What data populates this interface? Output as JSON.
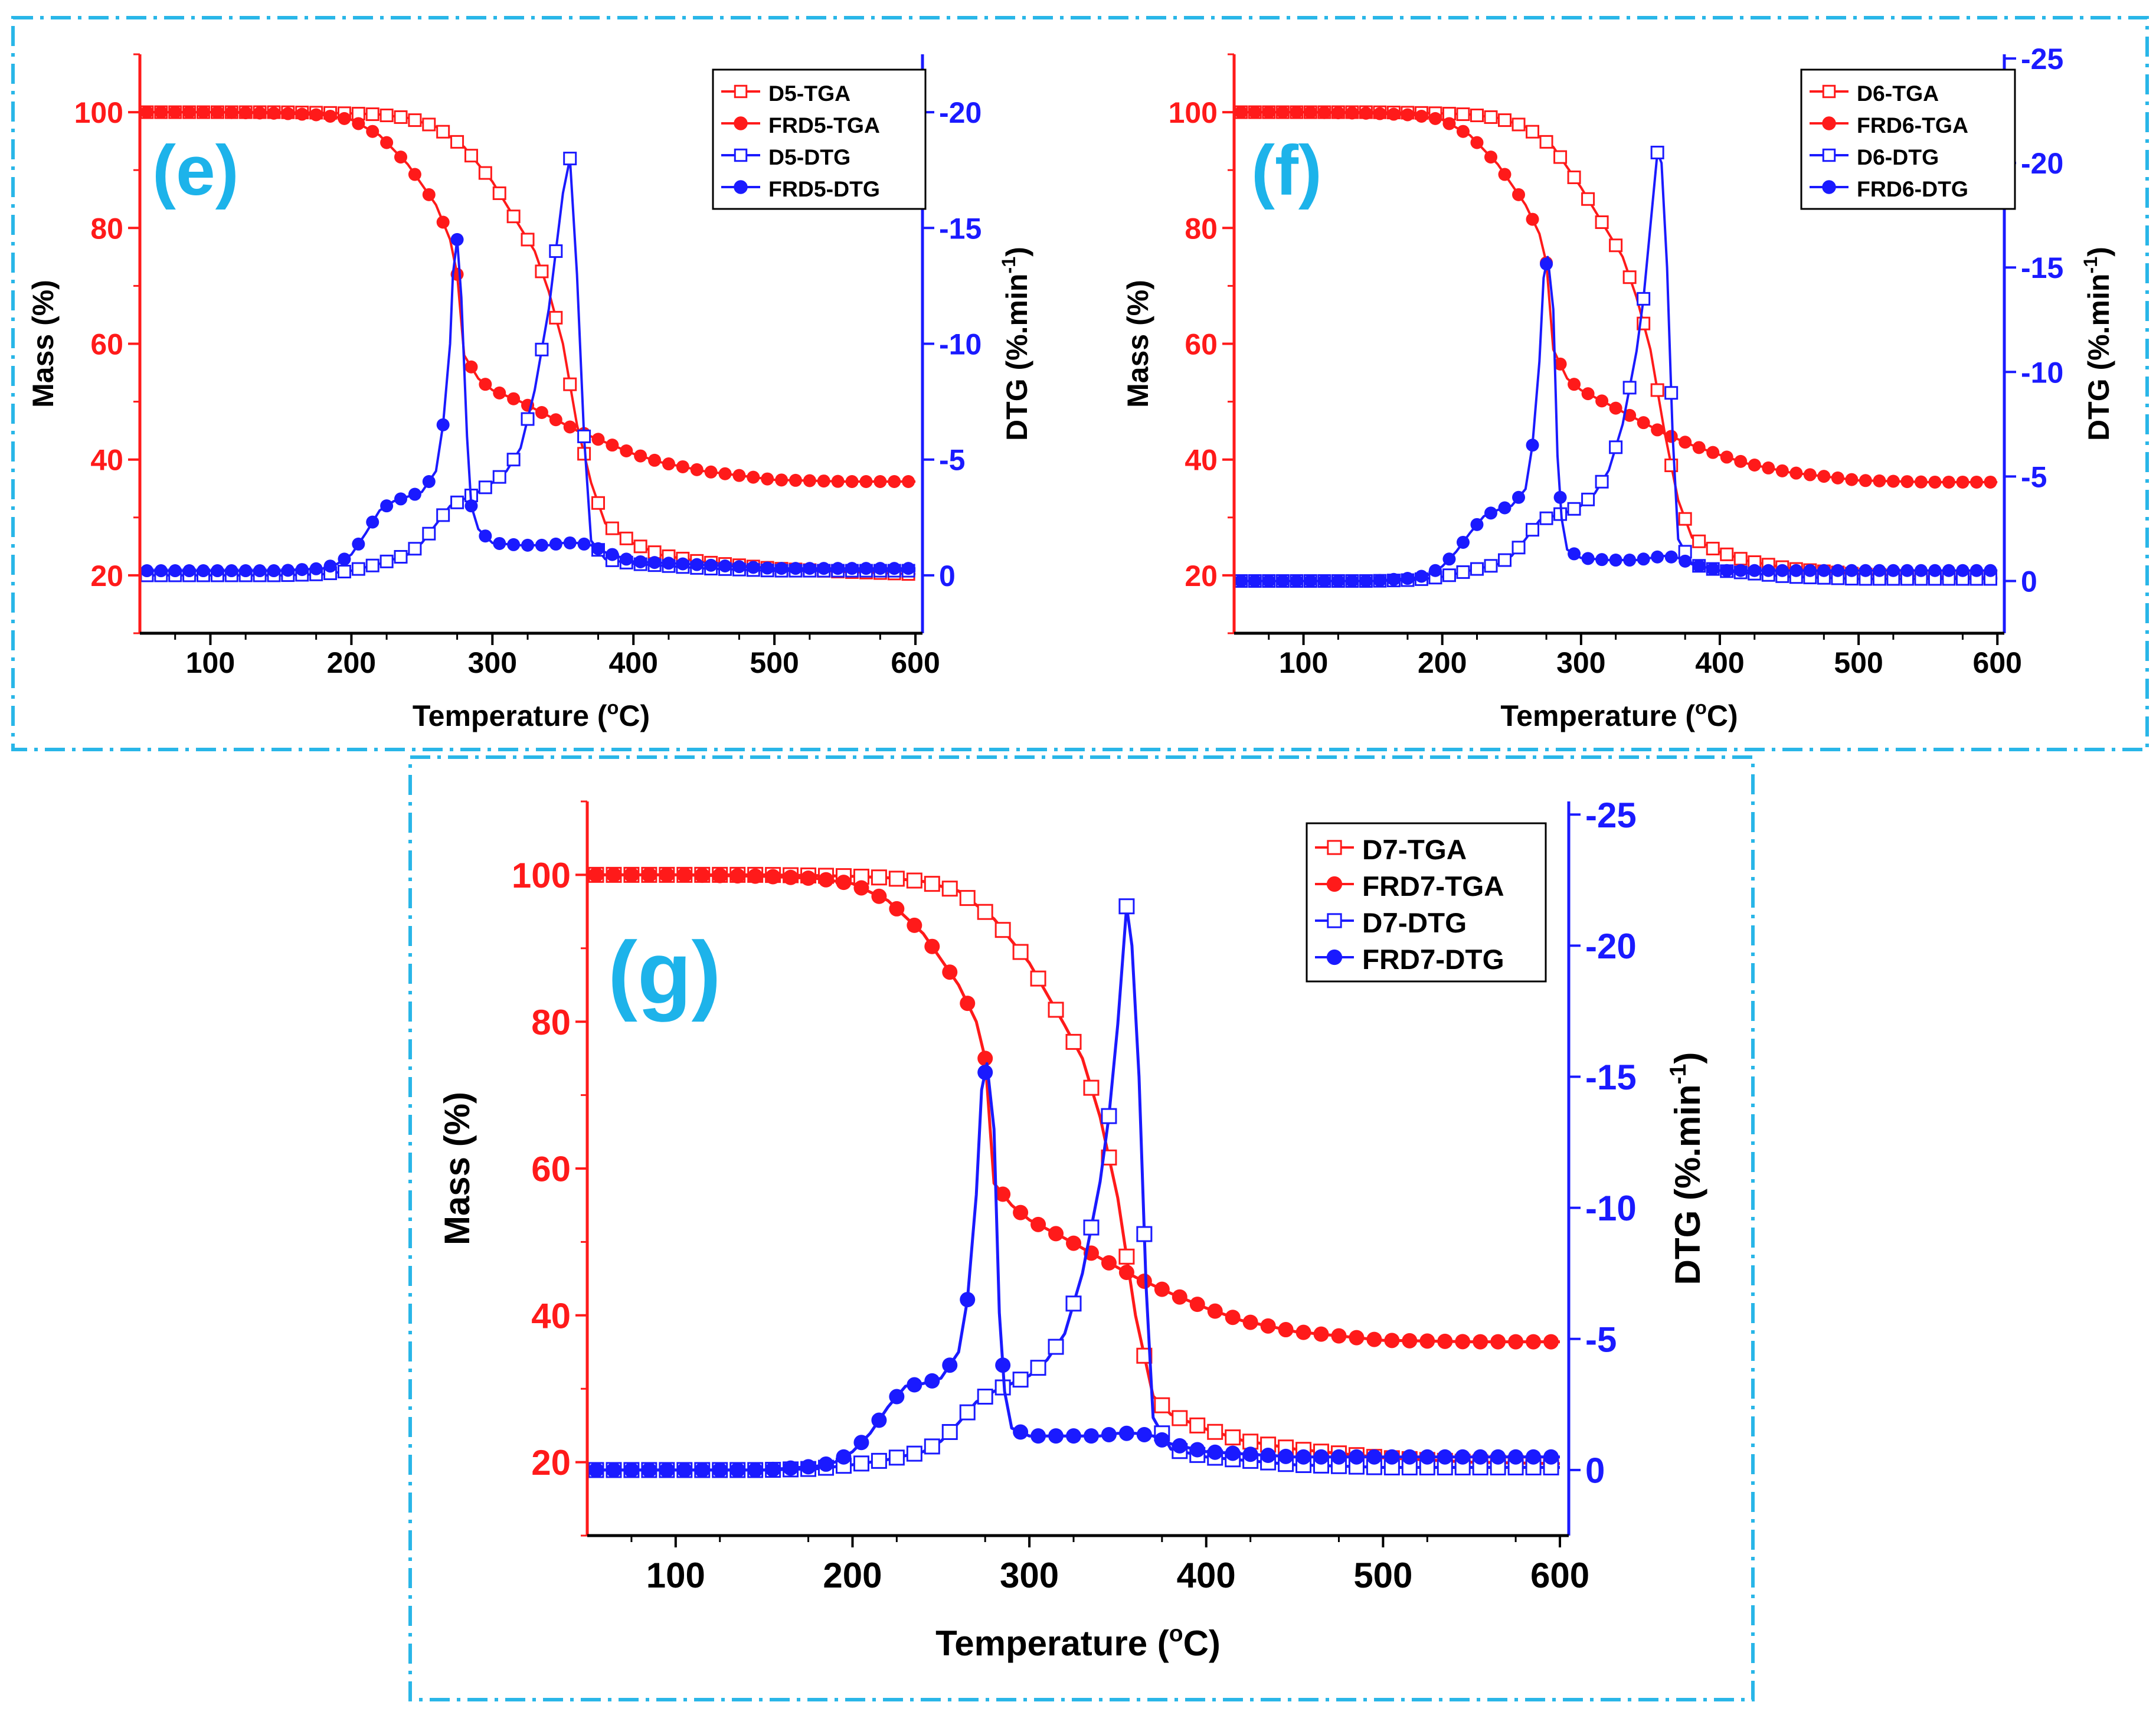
{
  "colors": {
    "frame": "#29b6e8",
    "tga": "#ff1a1a",
    "dtg": "#1a1aff",
    "panel_label": "#1db3ea",
    "axis": "#000000"
  },
  "chart_data": [
    {
      "type": "line",
      "panel_label": "(e)",
      "xlabel": "Temperature (°C)",
      "xlabel_main": "Temperature (",
      "xlabel_sup": "o",
      "xlabel_end": "C)",
      "ylabel": "Mass (%)",
      "y2label": "DTG (%.min-1)",
      "y2label_main": "DTG (%.min",
      "y2label_sup": "-1",
      "y2label_end": ")",
      "xlim": [
        50,
        605
      ],
      "ylim": [
        10,
        110
      ],
      "y2lim": [
        2.5,
        -22.5
      ],
      "xticks": [
        100,
        200,
        300,
        400,
        500,
        600
      ],
      "yticks": [
        20,
        40,
        60,
        80,
        100
      ],
      "y2ticks": [
        0,
        -5,
        -10,
        -15,
        -20
      ],
      "legend": [
        "D5-TGA",
        "FRD5-TGA",
        "D5-DTG",
        "FRD5-DTG"
      ],
      "series": [
        {
          "name": "D5-TGA",
          "axis": "left",
          "marker": "open-square",
          "color": "tga",
          "x": [
            50,
            100,
            150,
            180,
            200,
            220,
            240,
            260,
            280,
            300,
            320,
            330,
            340,
            350,
            360,
            370,
            380,
            400,
            420,
            450,
            500,
            550,
            600
          ],
          "y": [
            100,
            100,
            100,
            99.9,
            99.8,
            99.6,
            99,
            97.5,
            94,
            88,
            80,
            76,
            69,
            60,
            46,
            36,
            29,
            25.5,
            23.5,
            22.3,
            21.2,
            20.6,
            20.2
          ]
        },
        {
          "name": "FRD5-TGA",
          "axis": "left",
          "marker": "filled-circle",
          "color": "tga",
          "x": [
            50,
            100,
            150,
            180,
            200,
            220,
            240,
            260,
            270,
            275,
            280,
            290,
            300,
            320,
            340,
            360,
            380,
            400,
            420,
            450,
            500,
            550,
            600
          ],
          "y": [
            100,
            100,
            99.8,
            99.5,
            98.7,
            96,
            91,
            84,
            78,
            72,
            58,
            54,
            52,
            50,
            47.5,
            45,
            43,
            41,
            39.5,
            38,
            36.5,
            36.2,
            36.2
          ]
        },
        {
          "name": "D5-DTG",
          "axis": "right",
          "marker": "open-square",
          "color": "dtg",
          "x": [
            50,
            100,
            150,
            180,
            200,
            220,
            240,
            250,
            260,
            270,
            280,
            290,
            300,
            310,
            320,
            330,
            340,
            345,
            350,
            355,
            360,
            365,
            370,
            380,
            400,
            450,
            500,
            550,
            600
          ],
          "y": [
            0,
            0,
            0,
            -0.05,
            -0.2,
            -0.5,
            -0.9,
            -1.4,
            -2.2,
            -3,
            -3.3,
            -3.6,
            -4,
            -4.5,
            -5.5,
            -8,
            -11.5,
            -14,
            -16.5,
            -18,
            -13,
            -6,
            -1.5,
            -0.7,
            -0.5,
            -0.3,
            -0.2,
            -0.2,
            -0.2
          ]
        },
        {
          "name": "FRD5-DTG",
          "axis": "right",
          "marker": "filled-circle",
          "color": "dtg",
          "x": [
            50,
            100,
            150,
            180,
            190,
            200,
            210,
            220,
            230,
            240,
            250,
            260,
            265,
            270,
            272,
            275,
            278,
            282,
            285,
            290,
            300,
            320,
            340,
            350,
            360,
            370,
            380,
            400,
            450,
            500,
            550,
            600
          ],
          "y": [
            -0.2,
            -0.2,
            -0.2,
            -0.3,
            -0.5,
            -0.9,
            -1.8,
            -2.8,
            -3.2,
            -3.4,
            -3.6,
            -4.5,
            -6.5,
            -10,
            -13,
            -14.5,
            -12,
            -6,
            -3,
            -2,
            -1.4,
            -1.3,
            -1.3,
            -1.4,
            -1.4,
            -1.3,
            -1,
            -0.6,
            -0.45,
            -0.3,
            -0.3,
            -0.3
          ]
        }
      ]
    },
    {
      "type": "line",
      "panel_label": "(f)",
      "xlabel": "Temperature (°C)",
      "xlabel_main": "Temperature (",
      "xlabel_sup": "o",
      "xlabel_end": "C)",
      "ylabel": "Mass (%)",
      "y2label": "DTG (%.min-1)",
      "y2label_main": "DTG (%.min",
      "y2label_sup": "-1",
      "y2label_end": ")",
      "xlim": [
        50,
        605
      ],
      "ylim": [
        10,
        110
      ],
      "y2lim": [
        2.5,
        -25.2
      ],
      "xticks": [
        100,
        200,
        300,
        400,
        500,
        600
      ],
      "yticks": [
        20,
        40,
        60,
        80,
        100
      ],
      "y2ticks": [
        0,
        -5,
        -10,
        -15,
        -20,
        -25
      ],
      "legend": [
        "D6-TGA",
        "FRD6-TGA",
        "D6-DTG",
        "FRD6-DTG"
      ],
      "series": [
        {
          "name": "D6-TGA",
          "axis": "left",
          "marker": "open-square",
          "color": "tga",
          "x": [
            50,
            100,
            150,
            180,
            200,
            220,
            240,
            260,
            280,
            300,
            320,
            330,
            340,
            350,
            360,
            370,
            380,
            400,
            420,
            450,
            500,
            550,
            600
          ],
          "y": [
            100,
            100,
            100,
            99.9,
            99.8,
            99.6,
            99,
            97.5,
            94,
            87,
            79,
            75,
            68,
            59,
            45,
            33,
            26.5,
            24,
            22.5,
            21.2,
            20.2,
            19.8,
            19.6
          ]
        },
        {
          "name": "FRD6-TGA",
          "axis": "left",
          "marker": "filled-circle",
          "color": "tga",
          "x": [
            50,
            100,
            150,
            180,
            200,
            220,
            240,
            260,
            270,
            275,
            280,
            290,
            300,
            320,
            340,
            360,
            380,
            400,
            420,
            450,
            500,
            550,
            600
          ],
          "y": [
            100,
            100,
            99.8,
            99.5,
            98.7,
            96,
            91,
            84,
            79,
            74,
            59,
            54,
            52,
            49.5,
            47,
            44.5,
            42.5,
            40.8,
            39.3,
            37.8,
            36.4,
            36.1,
            36.1
          ]
        },
        {
          "name": "D6-DTG",
          "axis": "right",
          "marker": "open-square",
          "color": "dtg",
          "x": [
            50,
            100,
            150,
            180,
            200,
            220,
            240,
            250,
            260,
            270,
            280,
            290,
            300,
            310,
            320,
            330,
            340,
            345,
            350,
            355,
            358,
            362,
            366,
            370,
            380,
            400,
            450,
            500,
            550,
            600
          ],
          "y": [
            0,
            0,
            0,
            -0.05,
            -0.2,
            -0.5,
            -0.8,
            -1.2,
            -2,
            -2.9,
            -3.1,
            -3.3,
            -3.6,
            -4.2,
            -5.3,
            -7.5,
            -11,
            -13.5,
            -17,
            -20.5,
            -20,
            -15,
            -7,
            -2,
            -0.8,
            -0.5,
            -0.2,
            -0.1,
            -0.1,
            -0.1
          ]
        },
        {
          "name": "FRD6-DTG",
          "axis": "right",
          "marker": "filled-circle",
          "color": "dtg",
          "x": [
            50,
            100,
            150,
            180,
            190,
            200,
            210,
            220,
            230,
            240,
            250,
            260,
            265,
            270,
            273,
            276,
            280,
            283,
            286,
            290,
            300,
            320,
            340,
            350,
            360,
            370,
            380,
            400,
            450,
            500,
            550,
            600
          ],
          "y": [
            0,
            0,
            0,
            -0.15,
            -0.3,
            -0.7,
            -1.4,
            -2.3,
            -3.1,
            -3.4,
            -3.6,
            -4.4,
            -6.5,
            -10.5,
            -14.5,
            -15.5,
            -13,
            -6,
            -3,
            -1.5,
            -1.1,
            -1,
            -1,
            -1.1,
            -1.2,
            -1.1,
            -0.8,
            -0.5,
            -0.5,
            -0.5,
            -0.5,
            -0.5
          ]
        }
      ]
    },
    {
      "type": "line",
      "panel_label": "(g)",
      "xlabel": "Temperature (°C)",
      "xlabel_main": "Temperature (",
      "xlabel_sup": "o",
      "xlabel_end": "C)",
      "ylabel": "Mass (%)",
      "y2label": "DTG (%.min-1)",
      "y2label_main": "DTG (%.min",
      "y2label_sup": "-1",
      "y2label_end": ")",
      "xlim": [
        50,
        605
      ],
      "ylim": [
        10,
        110
      ],
      "y2lim": [
        2.5,
        -25.5
      ],
      "xticks": [
        100,
        200,
        300,
        400,
        500,
        600
      ],
      "yticks": [
        20,
        40,
        60,
        80,
        100
      ],
      "y2ticks": [
        0,
        -5,
        -10,
        -15,
        -20,
        -25
      ],
      "legend": [
        "D7-TGA",
        "FRD7-TGA",
        "D7-DTG",
        "FRD7-DTG"
      ],
      "series": [
        {
          "name": "D7-TGA",
          "axis": "left",
          "marker": "open-square",
          "color": "tga",
          "x": [
            50,
            100,
            150,
            180,
            200,
            220,
            240,
            260,
            280,
            300,
            320,
            330,
            340,
            350,
            360,
            370,
            380,
            400,
            420,
            450,
            500,
            550,
            600
          ],
          "y": [
            100,
            100,
            100,
            99.9,
            99.8,
            99.6,
            99.1,
            97.8,
            94,
            88,
            79.5,
            75,
            67,
            56,
            40,
            29,
            26.5,
            24.5,
            23,
            21.8,
            20.6,
            20,
            19.8
          ]
        },
        {
          "name": "FRD7-TGA",
          "axis": "left",
          "marker": "filled-circle",
          "color": "tga",
          "x": [
            50,
            100,
            150,
            180,
            200,
            220,
            240,
            260,
            270,
            275,
            280,
            290,
            300,
            320,
            340,
            360,
            380,
            400,
            420,
            450,
            500,
            550,
            600
          ],
          "y": [
            100,
            100,
            99.8,
            99.5,
            98.8,
            96.5,
            92,
            85,
            80,
            75,
            58,
            55,
            53,
            50.5,
            47.8,
            45.2,
            43,
            41,
            39.3,
            37.8,
            36.6,
            36.4,
            36.4
          ]
        },
        {
          "name": "D7-DTG",
          "axis": "right",
          "marker": "open-square",
          "color": "dtg",
          "x": [
            50,
            100,
            150,
            180,
            200,
            220,
            240,
            250,
            260,
            270,
            280,
            290,
            300,
            310,
            320,
            330,
            340,
            345,
            350,
            355,
            358,
            362,
            366,
            370,
            380,
            400,
            450,
            500,
            550,
            600
          ],
          "y": [
            0,
            0,
            0,
            -0.05,
            -0.2,
            -0.4,
            -0.7,
            -1.1,
            -1.8,
            -2.6,
            -3,
            -3.3,
            -3.6,
            -4.2,
            -5.2,
            -7.5,
            -11,
            -13.5,
            -17,
            -21.5,
            -20,
            -15,
            -7,
            -2,
            -0.8,
            -0.5,
            -0.2,
            -0.1,
            -0.1,
            -0.1
          ]
        },
        {
          "name": "FRD7-DTG",
          "axis": "right",
          "marker": "filled-circle",
          "color": "dtg",
          "x": [
            50,
            100,
            150,
            180,
            190,
            200,
            210,
            220,
            230,
            240,
            250,
            260,
            265,
            270,
            273,
            276,
            280,
            283,
            286,
            290,
            300,
            320,
            340,
            350,
            360,
            370,
            380,
            400,
            450,
            500,
            550,
            600
          ],
          "y": [
            0,
            0,
            0,
            -0.15,
            -0.3,
            -0.7,
            -1.4,
            -2.4,
            -3.2,
            -3.3,
            -3.5,
            -4.5,
            -6.5,
            -10.5,
            -14.5,
            -15.5,
            -13,
            -6,
            -3,
            -1.6,
            -1.3,
            -1.3,
            -1.3,
            -1.4,
            -1.4,
            -1.3,
            -1,
            -0.7,
            -0.5,
            -0.5,
            -0.5,
            -0.5
          ]
        }
      ]
    }
  ]
}
